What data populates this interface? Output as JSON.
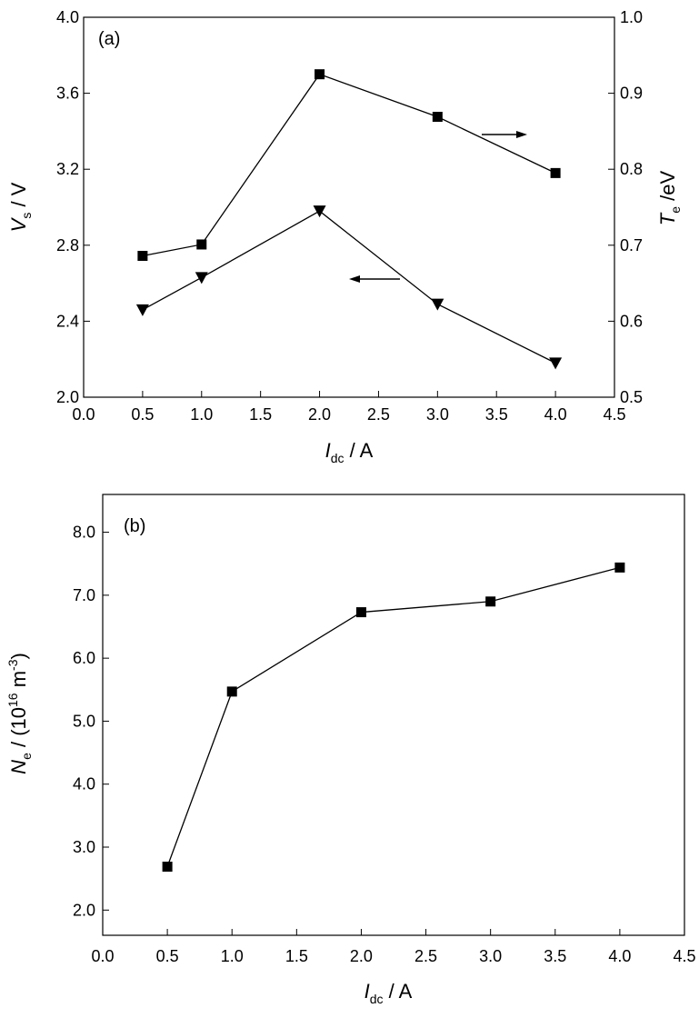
{
  "chart_data": [
    {
      "panel": "(a)",
      "type": "line",
      "x": [
        0.5,
        1.0,
        2.0,
        3.0,
        4.0
      ],
      "xlim": [
        0.0,
        4.5
      ],
      "xticks": [
        "0.0",
        "0.5",
        "1.0",
        "1.5",
        "2.0",
        "2.5",
        "3.0",
        "3.5",
        "4.0",
        "4.5"
      ],
      "xlabel": {
        "main": "I",
        "sub": "dc",
        "unit": " / A"
      },
      "ylabel_left": {
        "main": "V",
        "sub": "s",
        "unit": " / V"
      },
      "ylim_left": [
        2.0,
        4.0
      ],
      "yticks_left": [
        "2.0",
        "2.4",
        "2.8",
        "3.2",
        "3.6",
        "4.0"
      ],
      "ylabel_right": {
        "main": "T",
        "sub": "e",
        "unit": " /eV"
      },
      "ylim_right": [
        0.5,
        1.0
      ],
      "yticks_right": [
        "0.5",
        "0.6",
        "0.7",
        "0.8",
        "0.9",
        "1.0"
      ],
      "grid": false,
      "series": [
        {
          "axis": "left",
          "marker": "triangle-down",
          "values": [
            2.46,
            2.63,
            2.98,
            2.49,
            2.18
          ]
        },
        {
          "axis": "right",
          "marker": "square",
          "values": [
            0.686,
            0.701,
            0.925,
            0.869,
            0.795
          ]
        }
      ],
      "annotations": [
        "arrow-right pointing to right axis",
        "arrow-left pointing to left axis"
      ]
    },
    {
      "panel": "(b)",
      "type": "line",
      "x": [
        0.5,
        1.0,
        2.0,
        3.0,
        4.0
      ],
      "xlim": [
        0.0,
        4.5
      ],
      "xticks": [
        "0.0",
        "0.5",
        "1.0",
        "1.5",
        "2.0",
        "2.5",
        "3.0",
        "3.5",
        "4.0",
        "4.5"
      ],
      "xlabel": {
        "main": "I",
        "sub": "dc",
        "unit": " / A"
      },
      "ylabel": {
        "main": "N",
        "sub": "e",
        "unit": " / (10",
        "sup1": "16",
        "mid": " m",
        "sup2": "-3",
        "end": ")"
      },
      "ylim": [
        1.6,
        8.6
      ],
      "yticks": [
        "2.0",
        "3.0",
        "4.0",
        "5.0",
        "6.0",
        "7.0",
        "8.0"
      ],
      "grid": false,
      "series": [
        {
          "marker": "square",
          "values": [
            2.69,
            5.47,
            6.73,
            6.9,
            7.44
          ]
        }
      ]
    }
  ]
}
